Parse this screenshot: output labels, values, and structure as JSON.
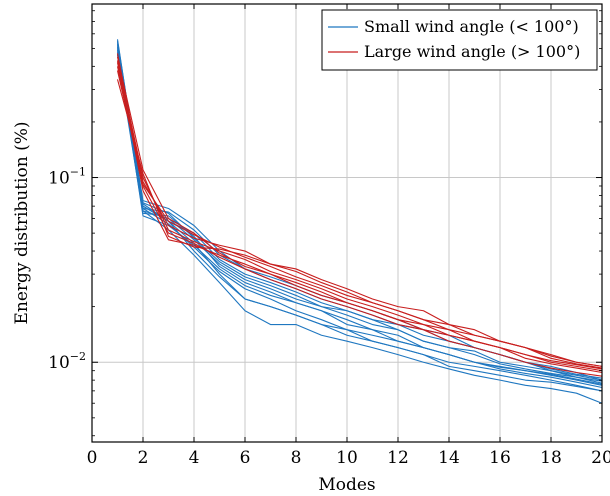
{
  "chart_data": {
    "type": "line",
    "title": "",
    "xlabel": "Modes",
    "ylabel": "Energy distribution (%)",
    "xlim": [
      0,
      20
    ],
    "ylim": [
      0.0037,
      0.87
    ],
    "yscale": "log",
    "grid": true,
    "legend_position": "top-right",
    "x_ticks": [
      0,
      2,
      4,
      6,
      8,
      10,
      12,
      14,
      16,
      18,
      20
    ],
    "y_ticks": [
      {
        "base": "10",
        "exponent": "−1",
        "value": 0.1
      },
      {
        "base": "10",
        "exponent": "−2",
        "value": 0.01
      }
    ],
    "groups": [
      {
        "name": "Small wind angle (< 100°)",
        "color": "#1f77c0"
      },
      {
        "name": "Large wind angle (> 100°)",
        "color": "#c81e1e"
      }
    ],
    "x": [
      1,
      2,
      3,
      4,
      5,
      6,
      7,
      8,
      9,
      10,
      11,
      12,
      13,
      14,
      15,
      16,
      17,
      18,
      19,
      20
    ],
    "series": [
      {
        "group": 0,
        "values": [
          0.56,
          0.07,
          0.058,
          0.05,
          0.036,
          0.03,
          0.027,
          0.024,
          0.021,
          0.019,
          0.017,
          0.016,
          0.014,
          0.013,
          0.012,
          0.011,
          0.01,
          0.0095,
          0.0088,
          0.008
        ]
      },
      {
        "group": 0,
        "values": [
          0.52,
          0.066,
          0.06,
          0.046,
          0.034,
          0.028,
          0.025,
          0.022,
          0.02,
          0.018,
          0.016,
          0.015,
          0.013,
          0.012,
          0.0115,
          0.01,
          0.0095,
          0.009,
          0.0083,
          0.0077
        ]
      },
      {
        "group": 0,
        "values": [
          0.5,
          0.062,
          0.055,
          0.043,
          0.032,
          0.026,
          0.023,
          0.021,
          0.019,
          0.016,
          0.015,
          0.014,
          0.012,
          0.011,
          0.01,
          0.0095,
          0.009,
          0.0085,
          0.008,
          0.0075
        ]
      },
      {
        "group": 0,
        "values": [
          0.54,
          0.068,
          0.065,
          0.052,
          0.038,
          0.032,
          0.028,
          0.025,
          0.022,
          0.02,
          0.018,
          0.016,
          0.015,
          0.013,
          0.012,
          0.011,
          0.01,
          0.009,
          0.0085,
          0.008
        ]
      },
      {
        "group": 0,
        "values": [
          0.48,
          0.072,
          0.058,
          0.044,
          0.03,
          0.022,
          0.02,
          0.018,
          0.016,
          0.015,
          0.013,
          0.012,
          0.011,
          0.01,
          0.0095,
          0.009,
          0.0085,
          0.008,
          0.0075,
          0.007
        ]
      },
      {
        "group": 0,
        "values": [
          0.46,
          0.064,
          0.062,
          0.048,
          0.033,
          0.027,
          0.024,
          0.021,
          0.019,
          0.017,
          0.015,
          0.013,
          0.012,
          0.011,
          0.01,
          0.0092,
          0.0087,
          0.0083,
          0.0078,
          0.0073
        ]
      },
      {
        "group": 0,
        "values": [
          0.51,
          0.07,
          0.058,
          0.04,
          0.029,
          0.022,
          0.02,
          0.018,
          0.016,
          0.014,
          0.013,
          0.012,
          0.011,
          0.0095,
          0.009,
          0.0085,
          0.008,
          0.0078,
          0.0074,
          0.007
        ]
      },
      {
        "group": 0,
        "values": [
          0.53,
          0.075,
          0.068,
          0.055,
          0.04,
          0.032,
          0.029,
          0.026,
          0.023,
          0.021,
          0.019,
          0.017,
          0.015,
          0.014,
          0.012,
          0.011,
          0.01,
          0.0092,
          0.0086,
          0.0082
        ]
      },
      {
        "group": 0,
        "values": [
          0.47,
          0.068,
          0.056,
          0.042,
          0.031,
          0.025,
          0.022,
          0.019,
          0.017,
          0.015,
          0.014,
          0.013,
          0.012,
          0.011,
          0.01,
          0.0094,
          0.009,
          0.0086,
          0.0081,
          0.0076
        ]
      },
      {
        "group": 0,
        "values": [
          0.49,
          0.066,
          0.052,
          0.038,
          0.027,
          0.019,
          0.016,
          0.016,
          0.014,
          0.013,
          0.012,
          0.011,
          0.01,
          0.0092,
          0.0085,
          0.008,
          0.0075,
          0.0072,
          0.0068,
          0.006
        ]
      },
      {
        "group": 0,
        "values": [
          0.55,
          0.073,
          0.064,
          0.047,
          0.035,
          0.029,
          0.026,
          0.023,
          0.02,
          0.019,
          0.017,
          0.015,
          0.013,
          0.012,
          0.011,
          0.0098,
          0.0092,
          0.0087,
          0.0083,
          0.0079
        ]
      },
      {
        "group": 1,
        "values": [
          0.34,
          0.105,
          0.048,
          0.042,
          0.041,
          0.038,
          0.034,
          0.032,
          0.028,
          0.025,
          0.022,
          0.02,
          0.019,
          0.016,
          0.015,
          0.013,
          0.012,
          0.011,
          0.01,
          0.0095
        ]
      },
      {
        "group": 1,
        "values": [
          0.4,
          0.095,
          0.055,
          0.047,
          0.043,
          0.04,
          0.034,
          0.031,
          0.027,
          0.024,
          0.021,
          0.019,
          0.017,
          0.015,
          0.014,
          0.013,
          0.012,
          0.0105,
          0.0098,
          0.0093
        ]
      },
      {
        "group": 1,
        "values": [
          0.45,
          0.11,
          0.06,
          0.05,
          0.039,
          0.033,
          0.03,
          0.026,
          0.023,
          0.021,
          0.019,
          0.017,
          0.016,
          0.014,
          0.013,
          0.012,
          0.011,
          0.01,
          0.0095,
          0.009
        ]
      },
      {
        "group": 1,
        "values": [
          0.43,
          0.1,
          0.052,
          0.045,
          0.04,
          0.036,
          0.031,
          0.028,
          0.025,
          0.022,
          0.02,
          0.018,
          0.016,
          0.015,
          0.013,
          0.012,
          0.011,
          0.0102,
          0.0097,
          0.0092
        ]
      },
      {
        "group": 1,
        "values": [
          0.47,
          0.09,
          0.05,
          0.044,
          0.037,
          0.032,
          0.028,
          0.025,
          0.022,
          0.02,
          0.018,
          0.016,
          0.015,
          0.013,
          0.012,
          0.011,
          0.01,
          0.0093,
          0.0088,
          0.0084
        ]
      },
      {
        "group": 1,
        "values": [
          0.42,
          0.085,
          0.046,
          0.043,
          0.038,
          0.034,
          0.03,
          0.027,
          0.024,
          0.021,
          0.019,
          0.017,
          0.015,
          0.014,
          0.013,
          0.012,
          0.0105,
          0.0098,
          0.0093,
          0.0088
        ]
      },
      {
        "group": 1,
        "values": [
          0.38,
          0.092,
          0.058,
          0.049,
          0.042,
          0.037,
          0.033,
          0.029,
          0.026,
          0.023,
          0.021,
          0.019,
          0.017,
          0.016,
          0.014,
          0.013,
          0.012,
          0.0108,
          0.01,
          0.0095
        ]
      }
    ]
  }
}
